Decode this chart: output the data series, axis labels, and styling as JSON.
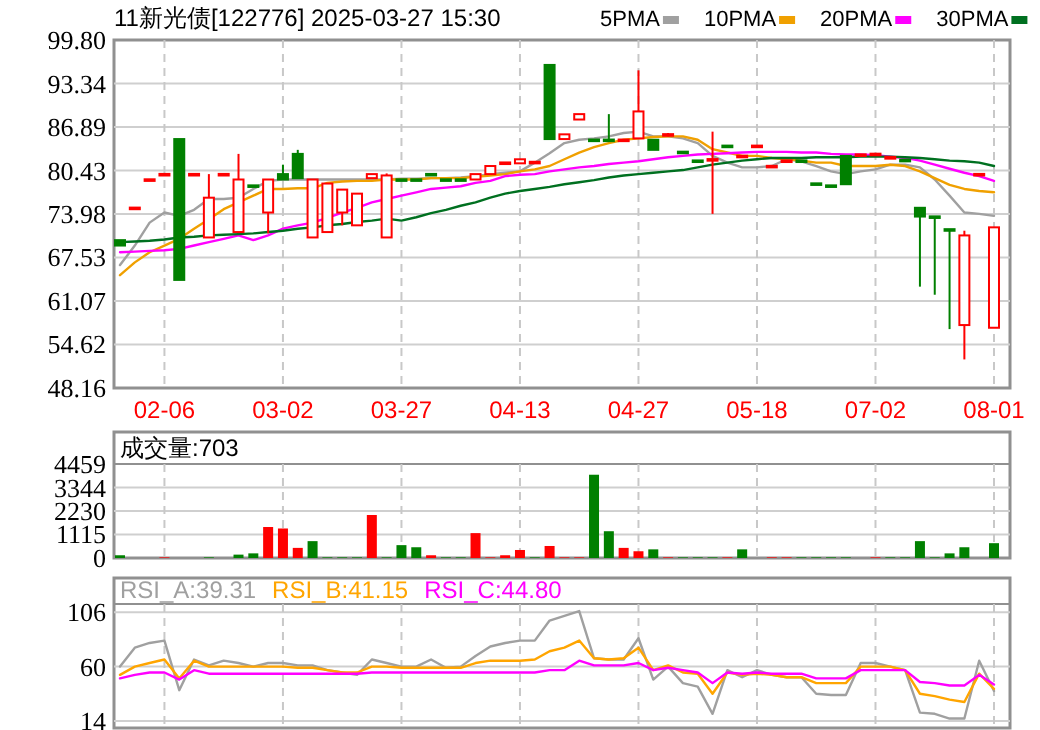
{
  "chart_data": [
    {
      "type": "candlestick",
      "title": "11新光债[122776] 2025-03-27 15:30",
      "categories": [
        null,
        null,
        null,
        "02-06",
        null,
        null,
        null,
        null,
        null,
        null,
        null,
        "03-02",
        null,
        null,
        null,
        null,
        null,
        null,
        null,
        "03-27",
        null,
        null,
        null,
        null,
        null,
        null,
        null,
        "04-13",
        null,
        null,
        null,
        null,
        null,
        null,
        null,
        "04-27",
        null,
        null,
        null,
        null,
        null,
        null,
        null,
        "05-18",
        null,
        null,
        null,
        null,
        null,
        null,
        null,
        "07-02",
        null,
        null,
        null,
        null,
        null,
        null,
        null,
        "08-01"
      ],
      "ohlc": [
        [
          70.1,
          70.1,
          69.3,
          69.3
        ],
        [
          74.9,
          74.9,
          74.9,
          74.9
        ],
        [
          79.1,
          79.1,
          79.1,
          79.1
        ],
        [
          79.9,
          79.9,
          79.9,
          79.9
        ],
        [
          85.1,
          85.1,
          64.2,
          64.2
        ],
        [
          79.9,
          79.9,
          79.9,
          79.9
        ],
        [
          70.5,
          79.9,
          70.5,
          76.4
        ],
        [
          79.9,
          79.9,
          79.9,
          79.9
        ],
        [
          71.3,
          82.9,
          71.3,
          79.1
        ],
        [
          78.2,
          78.2,
          78.0,
          78.0
        ],
        [
          74.2,
          79.1,
          71.1,
          79.1
        ],
        [
          79.9,
          81.3,
          79.1,
          79.1
        ],
        [
          82.9,
          83.5,
          79.3,
          79.3
        ],
        [
          70.5,
          79.1,
          70.5,
          79.1
        ],
        [
          71.3,
          78.5,
          71.3,
          78.5
        ],
        [
          74.2,
          77.6,
          72.3,
          77.6
        ],
        [
          72.3,
          77.0,
          72.3,
          77.0
        ],
        [
          79.3,
          79.9,
          79.3,
          79.9
        ],
        [
          70.5,
          80.0,
          70.5,
          79.7
        ],
        [
          79.1,
          79.1,
          79.0,
          79.0
        ],
        [
          79.1,
          79.1,
          79.0,
          79.0
        ],
        [
          79.9,
          79.9,
          79.8,
          79.8
        ],
        [
          79.1,
          79.1,
          79.0,
          79.0
        ],
        [
          79.1,
          79.1,
          79.0,
          79.0
        ],
        [
          79.1,
          79.9,
          79.1,
          79.9
        ],
        [
          79.9,
          81.1,
          79.9,
          81.1
        ],
        [
          81.3,
          81.6,
          81.3,
          81.6
        ],
        [
          81.5,
          82.1,
          81.5,
          82.1
        ],
        [
          81.7,
          81.7,
          81.7,
          81.7
        ],
        [
          96.1,
          96.1,
          85.1,
          85.1
        ],
        [
          85.1,
          85.8,
          85.1,
          85.8
        ],
        [
          88.0,
          88.8,
          88.0,
          88.8
        ],
        [
          85.0,
          85.0,
          84.9,
          84.9
        ],
        [
          85.0,
          88.8,
          84.9,
          84.9
        ],
        [
          85.0,
          85.0,
          85.0,
          85.0
        ],
        [
          85.2,
          95.3,
          85.2,
          89.2
        ],
        [
          85.0,
          85.0,
          83.5,
          83.5
        ],
        [
          85.5,
          86.0,
          85.5,
          85.8
        ],
        [
          83.2,
          83.2,
          83.1,
          83.1
        ],
        [
          81.9,
          81.9,
          81.8,
          81.8
        ],
        [
          82.0,
          86.2,
          74.0,
          82.1
        ],
        [
          84.1,
          84.1,
          84.0,
          84.0
        ],
        [
          82.6,
          82.6,
          82.6,
          82.6
        ],
        [
          84.1,
          84.1,
          84.1,
          84.1
        ],
        [
          81.1,
          81.1,
          81.1,
          81.1
        ],
        [
          81.9,
          81.9,
          81.9,
          81.9
        ],
        [
          81.9,
          81.9,
          81.8,
          81.8
        ],
        [
          78.5,
          78.5,
          78.4,
          78.4
        ],
        [
          78.2,
          78.2,
          78.1,
          78.1
        ],
        [
          82.6,
          82.6,
          78.4,
          78.4
        ],
        [
          82.8,
          82.8,
          82.8,
          82.8
        ],
        [
          82.9,
          82.9,
          82.9,
          82.9
        ],
        [
          82.4,
          82.4,
          82.4,
          82.4
        ],
        [
          82.0,
          82.0,
          81.9,
          81.9
        ],
        [
          74.9,
          74.9,
          63.2,
          73.6
        ],
        [
          73.6,
          73.6,
          62.0,
          73.5
        ],
        [
          71.7,
          71.7,
          56.9,
          71.6
        ],
        [
          57.5,
          71.5,
          52.4,
          70.8
        ],
        [
          79.9,
          79.9,
          79.9,
          79.9
        ],
        [
          57.1,
          72.0,
          57.1,
          72.0
        ]
      ],
      "series": [
        {
          "name": "5PMA",
          "type": "line",
          "color": "#a0a0a0",
          "values": [
            66.4,
            69.3,
            72.7,
            74.2,
            73.7,
            74.6,
            76.2,
            76.2,
            76.4,
            77.7,
            78.9,
            79.1,
            79.1,
            79.1,
            79.1,
            79.1,
            79.1,
            79.1,
            79.1,
            79.2,
            79.2,
            79.3,
            79.3,
            79.4,
            79.6,
            79.9,
            80.1,
            80.3,
            81.6,
            83.0,
            84.5,
            85.0,
            85.2,
            85.5,
            86.0,
            86.2,
            85.5,
            85.5,
            85.2,
            84.5,
            82.6,
            81.6,
            80.9,
            80.9,
            81.1,
            82.1,
            81.8,
            81.1,
            80.3,
            79.9,
            80.3,
            80.6,
            81.3,
            81.3,
            80.9,
            79.1,
            76.7,
            74.2,
            74.0,
            73.7
          ]
        },
        {
          "name": "10PMA",
          "type": "line",
          "color": "#f0a000",
          "values": [
            64.9,
            66.8,
            68.3,
            69.3,
            70.3,
            71.8,
            73.2,
            74.7,
            75.7,
            76.7,
            77.7,
            77.7,
            77.8,
            77.8,
            78.6,
            78.8,
            78.9,
            78.9,
            79.1,
            79.1,
            79.1,
            79.3,
            79.3,
            79.3,
            79.5,
            79.7,
            79.9,
            80.3,
            80.6,
            81.1,
            82.1,
            83.1,
            83.9,
            84.5,
            85.0,
            85.2,
            85.4,
            85.5,
            85.5,
            85.0,
            83.6,
            83.1,
            82.6,
            82.6,
            82.3,
            82.1,
            81.9,
            81.6,
            81.6,
            81.1,
            81.1,
            81.1,
            81.3,
            81.1,
            80.3,
            79.3,
            78.3,
            77.7,
            77.4,
            77.2
          ]
        },
        {
          "name": "20PMA",
          "type": "line",
          "color": "#ff00ff",
          "values": [
            68.3,
            68.4,
            68.5,
            68.6,
            68.8,
            69.3,
            69.8,
            70.3,
            70.8,
            70.1,
            70.8,
            71.8,
            72.3,
            72.7,
            73.4,
            74.2,
            74.9,
            75.7,
            76.2,
            76.7,
            77.2,
            77.7,
            77.9,
            78.1,
            78.6,
            78.9,
            79.6,
            79.8,
            79.9,
            80.3,
            80.6,
            80.9,
            81.1,
            81.4,
            81.6,
            81.8,
            82.1,
            82.4,
            82.6,
            82.8,
            82.9,
            83.0,
            83.1,
            83.2,
            83.2,
            83.2,
            83.1,
            83.1,
            82.9,
            82.8,
            82.8,
            82.7,
            82.5,
            82.3,
            81.9,
            81.3,
            80.7,
            80.1,
            79.6,
            78.9
          ]
        },
        {
          "name": "30PMA",
          "type": "line",
          "color": "#007020",
          "values": [
            69.8,
            69.9,
            70.0,
            70.2,
            70.5,
            70.6,
            70.8,
            70.9,
            71.0,
            71.1,
            71.3,
            71.5,
            71.8,
            72.0,
            72.3,
            72.5,
            72.8,
            73.0,
            73.3,
            73.0,
            73.5,
            74.1,
            74.6,
            75.2,
            75.7,
            76.4,
            77.0,
            77.4,
            77.7,
            78.0,
            78.4,
            78.7,
            79.0,
            79.4,
            79.7,
            79.9,
            80.1,
            80.3,
            80.5,
            80.9,
            81.3,
            81.6,
            81.9,
            82.1,
            82.3,
            82.3,
            82.3,
            82.4,
            82.4,
            82.4,
            82.5,
            82.5,
            82.5,
            82.4,
            82.3,
            82.1,
            81.9,
            81.8,
            81.6,
            81.1
          ]
        }
      ],
      "ylim": [
        48.16,
        99.8
      ],
      "yticks": [
        48.16,
        54.62,
        61.07,
        67.53,
        73.98,
        80.43,
        86.89,
        93.34,
        {
          "value": 99.8,
          "label": "99.80"
        }
      ],
      "grid": true,
      "legend": "top right"
    },
    {
      "type": "bar",
      "title": "成交量:703",
      "categories": [
        null,
        null,
        null,
        null,
        null,
        null,
        null,
        null,
        null,
        null,
        null,
        null,
        null,
        null,
        null,
        null,
        null,
        null,
        null,
        null,
        null,
        null,
        null,
        null,
        null,
        null,
        null,
        null,
        null,
        null,
        null,
        null,
        null,
        null,
        null,
        null,
        null,
        null,
        null,
        null,
        null,
        null,
        null,
        null,
        null,
        null,
        null,
        null,
        null,
        null,
        null,
        null,
        null,
        null,
        null,
        null,
        null,
        null,
        null,
        null
      ],
      "values": [
        130,
        0,
        0,
        30,
        0,
        0,
        30,
        0,
        160,
        220,
        1470,
        1400,
        480,
        800,
        30,
        30,
        30,
        2040,
        30,
        610,
        510,
        130,
        30,
        30,
        1180,
        30,
        130,
        380,
        30,
        570,
        30,
        30,
        3950,
        1270,
        480,
        320,
        410,
        30,
        30,
        30,
        30,
        30,
        410,
        0,
        30,
        30,
        30,
        30,
        30,
        30,
        0,
        30,
        30,
        30,
        800,
        30,
        220,
        510,
        0,
        703
      ],
      "colors": [
        "#008000",
        "#008000",
        "#008000",
        "#ff0000",
        "#008000",
        "#008000",
        "#008000",
        "#008000",
        "#008000",
        "#008000",
        "#ff0000",
        "#ff0000",
        "#ff0000",
        "#008000",
        "#008000",
        "#008000",
        "#008000",
        "#ff0000",
        "#008000",
        "#008000",
        "#008000",
        "#ff0000",
        "#008000",
        "#008000",
        "#ff0000",
        "#ff0000",
        "#ff0000",
        "#ff0000",
        "#008000",
        "#ff0000",
        "#ff0000",
        "#ff0000",
        "#008000",
        "#008000",
        "#ff0000",
        "#ff0000",
        "#008000",
        "#ff0000",
        "#008000",
        "#008000",
        "#008000",
        "#ff0000",
        "#008000",
        "#008000",
        "#ff0000",
        "#ff0000",
        "#008000",
        "#008000",
        "#008000",
        "#008000",
        "#008000",
        "#ff0000",
        "#008000",
        "#008000",
        "#008000",
        "#008000",
        "#008000",
        "#008000",
        "#008000",
        "#008000"
      ],
      "ylim": [
        0,
        4459
      ],
      "yticks": [
        0,
        1115,
        2230,
        3344,
        4459
      ],
      "grid": true,
      "tick_labels": "y"
    },
    {
      "type": "line",
      "categories": [
        null,
        null,
        null,
        null,
        null,
        null,
        null,
        null,
        null,
        null,
        null,
        null,
        null,
        null,
        null,
        null,
        null,
        null,
        null,
        null,
        null,
        null,
        null,
        null,
        null,
        null,
        null,
        null,
        null,
        null,
        null,
        null,
        null,
        null,
        null,
        null,
        null,
        null,
        null,
        null,
        null,
        null,
        null,
        null,
        null,
        null,
        null,
        null,
        null,
        null,
        null,
        null,
        null,
        null,
        null,
        null,
        null,
        null,
        null,
        null
      ],
      "series": [
        {
          "name": "RSI_A:39.31",
          "color": "#a0a0a0",
          "values": [
            60,
            76,
            80,
            82,
            40,
            66,
            61,
            65,
            63,
            60,
            63,
            63,
            61,
            61,
            57,
            55,
            53,
            66,
            63,
            60,
            60,
            66,
            59,
            60,
            69,
            77,
            80,
            82,
            82,
            99,
            103,
            107,
            67,
            66,
            66,
            84,
            49,
            60,
            46,
            43,
            20,
            57,
            51,
            57,
            53,
            51,
            51,
            37,
            36,
            36,
            63,
            63,
            60,
            57,
            21,
            20,
            16,
            16,
            65,
            39.31
          ]
        },
        {
          "name": "RSI_B:41.15",
          "color": "#ffa500",
          "values": [
            53,
            60,
            63,
            66,
            50,
            65,
            60,
            60,
            60,
            60,
            60,
            60,
            59,
            59,
            57,
            55,
            55,
            60,
            60,
            59,
            59,
            59,
            59,
            59,
            63,
            65,
            65,
            65,
            66,
            73,
            76,
            82,
            67,
            66,
            67,
            76,
            57,
            61,
            55,
            54,
            37,
            55,
            53,
            54,
            53,
            51,
            51,
            46,
            46,
            46,
            60,
            60,
            60,
            57,
            37,
            35,
            32,
            30,
            54,
            41.15
          ]
        },
        {
          "name": "RSI_C:44.80",
          "color": "#ff00ff",
          "values": [
            50,
            53,
            55,
            55,
            49,
            57,
            54,
            54,
            54,
            54,
            54,
            54,
            54,
            54,
            54,
            54,
            54,
            55,
            55,
            55,
            55,
            55,
            55,
            55,
            55,
            55,
            55,
            55,
            55,
            57,
            57,
            65,
            61,
            61,
            61,
            63,
            57,
            59,
            57,
            55,
            46,
            55,
            54,
            55,
            54,
            54,
            54,
            50,
            50,
            50,
            57,
            57,
            57,
            57,
            47,
            46,
            44,
            44,
            53,
            44.8
          ]
        }
      ],
      "ylim": [
        8,
        113
      ],
      "yticks": [
        14,
        60,
        106
      ],
      "grid": true,
      "tick_labels": "y",
      "legend": "top left"
    }
  ]
}
